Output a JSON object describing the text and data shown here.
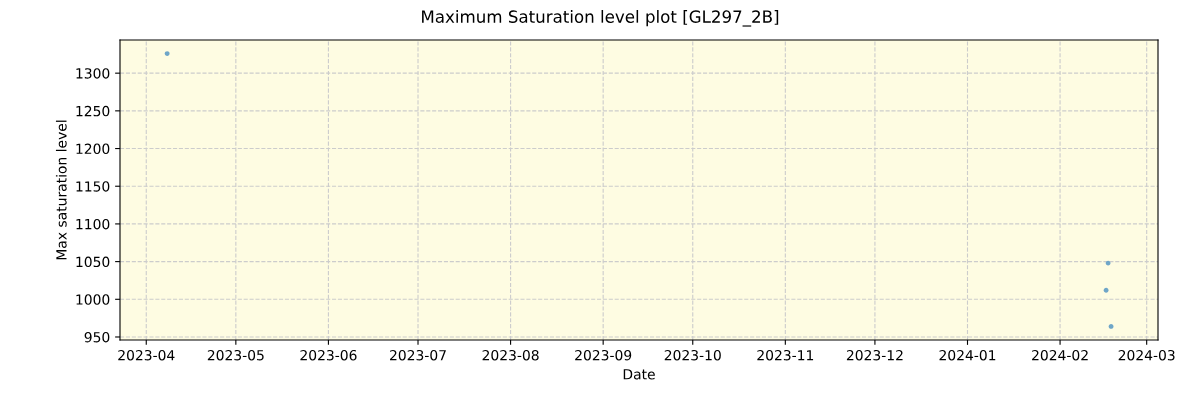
{
  "chart_data": {
    "type": "scatter",
    "title": "Maximum Saturation level plot [GL297_2B]",
    "xlabel": "Date",
    "ylabel": "Max saturation level",
    "x": [
      "2023-04-08",
      "2024-02-17T02:00",
      "2024-02-16T10:00",
      "2024-02-18T02:00"
    ],
    "series": [
      {
        "color": "#6fa6c8",
        "values": [
          1326,
          1048,
          1012,
          964
        ]
      }
    ],
    "xlim": [
      "2023-03-23T05:00",
      "2024-03-04T19:00"
    ],
    "xticks": [
      "2023-04",
      "2023-05",
      "2023-06",
      "2023-07",
      "2023-08",
      "2023-09",
      "2023-10",
      "2023-11",
      "2023-12",
      "2024-01",
      "2024-02",
      "2024-03"
    ],
    "ylim": [
      946,
      1344
    ],
    "yticks": [
      950,
      1000,
      1050,
      1100,
      1150,
      1200,
      1250,
      1300
    ],
    "grid": true,
    "marker": "circle"
  }
}
